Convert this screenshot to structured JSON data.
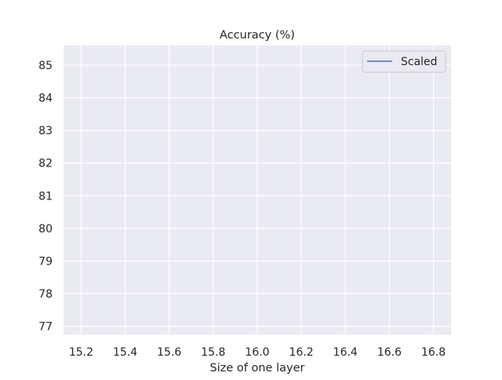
{
  "chart_data": {
    "type": "line",
    "title": "Accuracy (%)",
    "xlabel": "Size of one layer",
    "ylabel": "",
    "xlim": [
      15.12,
      16.88
    ],
    "ylim": [
      76.75,
      85.6
    ],
    "x_ticks": [
      "15.2",
      "15.4",
      "15.6",
      "15.8",
      "16.0",
      "16.2",
      "16.4",
      "16.6",
      "16.8"
    ],
    "x_tick_values": [
      15.2,
      15.4,
      15.6,
      15.8,
      16.0,
      16.2,
      16.4,
      16.6,
      16.8
    ],
    "y_ticks": [
      "77",
      "78",
      "79",
      "80",
      "81",
      "82",
      "83",
      "84",
      "85"
    ],
    "y_tick_values": [
      77,
      78,
      79,
      80,
      81,
      82,
      83,
      84,
      85
    ],
    "grid": true,
    "legend_position": "top-right",
    "series": [
      {
        "name": "Scaled",
        "x": [],
        "y": [],
        "color": "#4c72b0"
      }
    ],
    "colors": {
      "plot_background": "#eaeaf2",
      "grid": "#ffffff",
      "text": "#262626",
      "legend_border": "#cccccc"
    }
  }
}
